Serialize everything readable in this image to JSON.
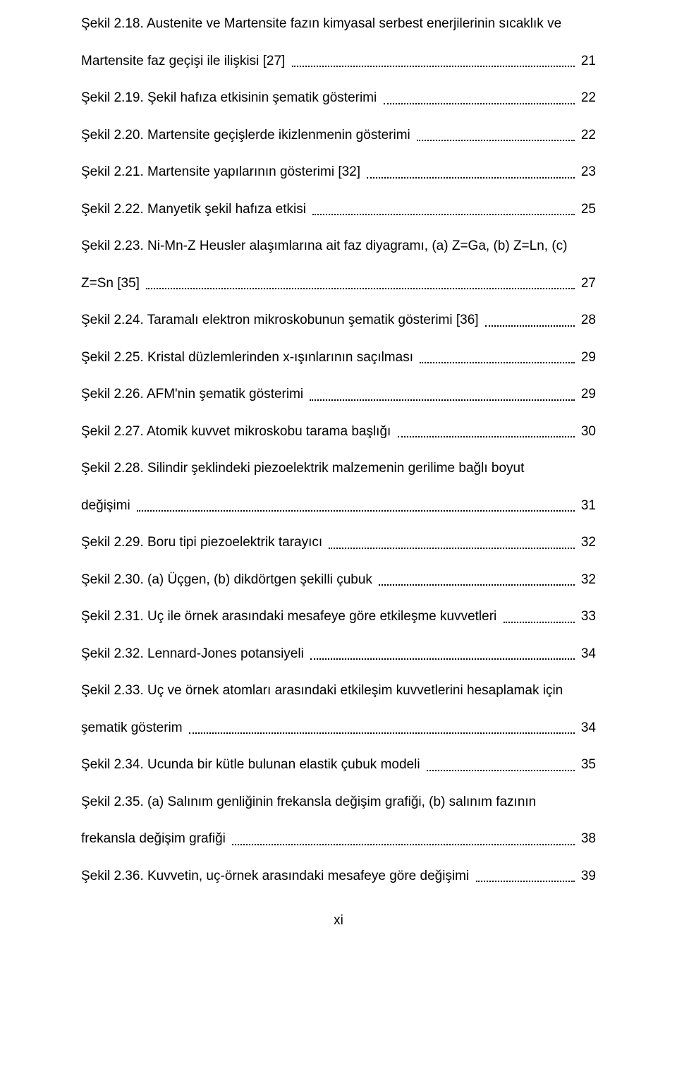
{
  "entries": [
    {
      "multi": true,
      "line1": "Şekil 2.18. Austenite ve Martensite fazın kimyasal serbest enerjilerinin sıcaklık ve",
      "line2": "Martensite faz geçişi ile ilişkisi [27]",
      "page": "21"
    },
    {
      "text": "Şekil 2.19. Şekil hafıza etkisinin şematik gösterimi",
      "page": "22"
    },
    {
      "text": "Şekil 2.20. Martensite geçişlerde ikizlenmenin gösterimi",
      "page": "22"
    },
    {
      "text": "Şekil 2.21. Martensite yapılarının gösterimi [32]",
      "page": "23"
    },
    {
      "text": "Şekil 2.22. Manyetik şekil hafıza etkisi",
      "page": "25"
    },
    {
      "multi": true,
      "line1": "Şekil 2.23. Ni-Mn-Z Heusler alaşımlarına ait faz diyagramı, (a) Z=Ga, (b) Z=Ln, (c)",
      "line2": "Z=Sn [35]",
      "page": "27"
    },
    {
      "text": "Şekil 2.24. Taramalı elektron mikroskobunun şematik gösterimi [36]",
      "page": "28"
    },
    {
      "text": "Şekil 2.25. Kristal düzlemlerinden x-ışınlarının saçılması",
      "page": "29"
    },
    {
      "text": "Şekil 2.26. AFM'nin şematik gösterimi",
      "page": "29"
    },
    {
      "text": "Şekil 2.27. Atomik kuvvet mikroskobu tarama başlığı",
      "page": "30"
    },
    {
      "multi": true,
      "line1": "Şekil 2.28. Silindir şeklindeki piezoelektrik malzemenin gerilime bağlı boyut",
      "line2": "değişimi",
      "page": "31"
    },
    {
      "text": "Şekil 2.29. Boru tipi piezoelektrik tarayıcı",
      "page": "32"
    },
    {
      "text": "Şekil 2.30. (a) Üçgen, (b) dikdörtgen şekilli çubuk",
      "page": "32"
    },
    {
      "text": "Şekil 2.31. Uç ile örnek arasındaki mesafeye göre etkileşme kuvvetleri",
      "page": "33"
    },
    {
      "text": "Şekil 2.32. Lennard-Jones potansiyeli",
      "page": "34"
    },
    {
      "multi": true,
      "line1": "Şekil 2.33. Uç ve örnek atomları arasındaki etkileşim kuvvetlerini hesaplamak için",
      "line2": "şematik gösterim",
      "page": "34"
    },
    {
      "text": "Şekil 2.34. Ucunda bir kütle bulunan elastik çubuk modeli",
      "page": "35"
    },
    {
      "multi": true,
      "line1": "Şekil 2.35. (a) Salınım genliğinin frekansla değişim grafiği, (b) salınım fazının",
      "line2": "frekansla değişim grafiği",
      "page": "38"
    },
    {
      "text": "Şekil 2.36. Kuvvetin, uç-örnek arasındaki mesafeye göre değişimi",
      "page": "39"
    }
  ],
  "footer": "xi"
}
